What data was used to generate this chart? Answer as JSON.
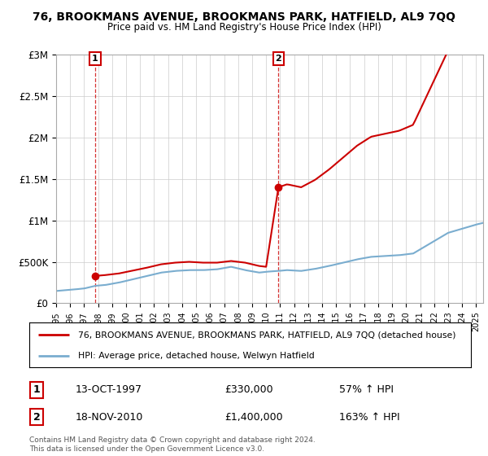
{
  "title": "76, BROOKMANS AVENUE, BROOKMANS PARK, HATFIELD, AL9 7QQ",
  "subtitle": "Price paid vs. HM Land Registry's House Price Index (HPI)",
  "sale1_date": "13-OCT-1997",
  "sale1_price": 330000,
  "sale1_price_str": "£330,000",
  "sale1_pct": "57% ↑ HPI",
  "sale2_date": "18-NOV-2010",
  "sale2_price": 1400000,
  "sale2_price_str": "£1,400,000",
  "sale2_pct": "163% ↑ HPI",
  "sale1_year": 1997.79,
  "sale2_year": 2010.88,
  "red_color": "#cc0000",
  "blue_color": "#7aadcf",
  "legend_label1": "76, BROOKMANS AVENUE, BROOKMANS PARK, HATFIELD, AL9 7QQ (detached house)",
  "legend_label2": "HPI: Average price, detached house, Welwyn Hatfield",
  "footnote": "Contains HM Land Registry data © Crown copyright and database right 2024.\nThis data is licensed under the Open Government Licence v3.0.",
  "ylim": [
    0,
    3000000
  ],
  "xlim_start": 1995,
  "xlim_end": 2025.5,
  "background": "#ffffff"
}
